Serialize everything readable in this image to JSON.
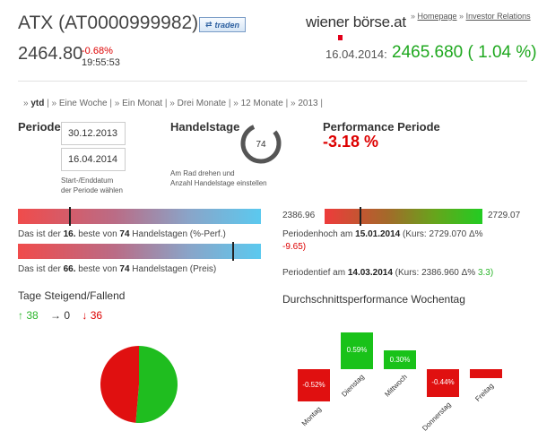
{
  "header": {
    "title": "ATX (AT0000999982)",
    "trade_button": "traden",
    "logo_text_a": "wiener",
    "logo_text_b": "börse.at",
    "links": {
      "prefix": "» ",
      "homepage": "Homepage",
      "sep": " » ",
      "ir": "Investor Relations"
    }
  },
  "quote": {
    "price": "2464.80",
    "change_pct": "-0.68%",
    "time": "19:55:53",
    "ref_date": "16.04.2014:",
    "ref_value": "2465.680 ( 1.04 %)"
  },
  "period_links": [
    {
      "label": "ytd",
      "active": true
    },
    {
      "label": "Eine Woche",
      "active": false
    },
    {
      "label": "Ein Monat",
      "active": false
    },
    {
      "label": "Drei Monate",
      "active": false
    },
    {
      "label": "12 Monate",
      "active": false
    },
    {
      "label": "2013",
      "active": false
    }
  ],
  "periode": {
    "label": "Periode",
    "start": "30.12.2013",
    "end": "16.04.2014",
    "hint_1": "Start-/Enddatum",
    "hint_2": "der Periode wählen"
  },
  "handelstage": {
    "label": "Handelstage",
    "value": "74",
    "hint_1": "Am Rad drehen und",
    "hint_2": "Anzahl Handelstage einstellen"
  },
  "performance": {
    "label": "Performance Periode",
    "value": "-3.18 %"
  },
  "rank_perf": {
    "marker_fraction": 0.215,
    "prefix": "Das ist der ",
    "rank": "16.",
    "mid": " beste von ",
    "total": "74",
    "suffix": " Handelstagen (%-Perf.)"
  },
  "rank_price": {
    "marker_fraction": 0.885,
    "prefix": "Das ist der ",
    "rank": "66.",
    "mid": " beste von ",
    "total": "74",
    "suffix": " Handelstagen (Preis)"
  },
  "range": {
    "low": "2386.96",
    "high": "2729.07",
    "marker_fraction": 0.23,
    "high_text": "Periodenhoch am ",
    "high_date": "15.01.2014",
    "high_kurs": " (Kurs: 2729.070 Δ%",
    "high_delta": "-9.65)",
    "low_text": "Periodentief am ",
    "low_date": "14.03.2014",
    "low_kurs": " (Kurs: 2386.960 Δ% ",
    "low_delta": "3.3)"
  },
  "tage": {
    "title": "Tage Steigend/Fallend",
    "up_label": "↑ 38",
    "flat_label": "→ 0",
    "down_label": "↓ 36",
    "up": 38,
    "flat": 0,
    "down": 36,
    "colors": {
      "up": "#1fbd1f",
      "down": "#e01010"
    }
  },
  "weekday": {
    "title": "Durchschnittsperformance Wochentag",
    "days": [
      {
        "label": "Montag",
        "value": -0.52,
        "text": "-0.52%"
      },
      {
        "label": "Dienstag",
        "value": 0.59,
        "text": "0.59%"
      },
      {
        "label": "Mittwoch",
        "value": 0.3,
        "text": "0.30%"
      },
      {
        "label": "Donnerstag",
        "value": -0.44,
        "text": "-0.44%"
      },
      {
        "label": "Freitag",
        "value": -0.14,
        "text": ""
      }
    ]
  }
}
